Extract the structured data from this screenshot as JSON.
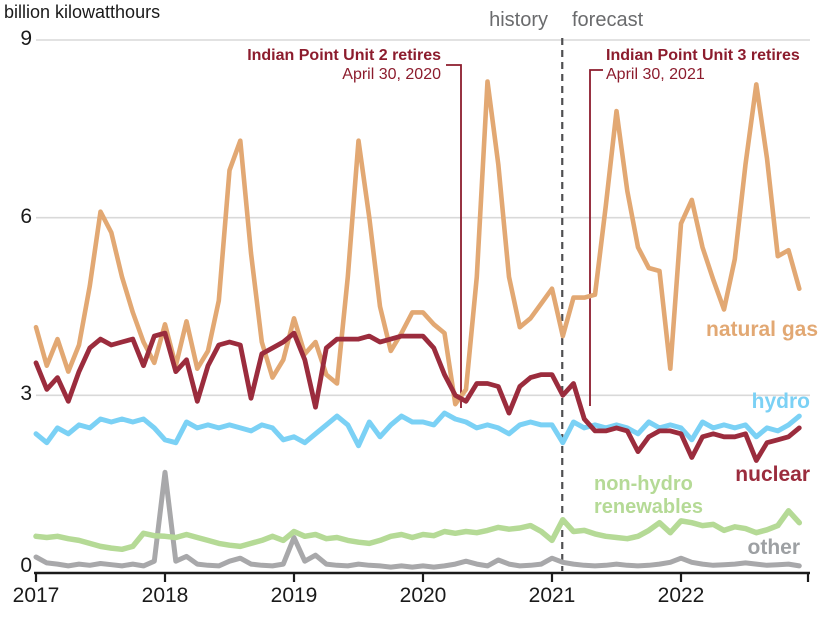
{
  "title": "billion kilowatthours",
  "period_labels": {
    "history": "history",
    "forecast": "forecast"
  },
  "annotations": {
    "unit2": {
      "title": "Indian Point Unit 2 retires",
      "date": "April 30, 2020"
    },
    "unit3": {
      "title": "Indian Point Unit 3 retires",
      "date": "April 30, 2021"
    }
  },
  "axis": {
    "y_tick_labels": [
      "9",
      "6",
      "3",
      "0"
    ],
    "x_tick_labels": [
      "2017",
      "2018",
      "2019",
      "2020",
      "2021",
      "2022"
    ]
  },
  "chart_data": {
    "type": "line",
    "title": "billion kilowatthours",
    "ylabel": "billion kilowatthours",
    "xlabel": "",
    "x_monthly_start": "2017-01",
    "x_monthly_end": "2022-12",
    "ylim": [
      0,
      9
    ],
    "yticks": [
      0,
      3,
      6,
      9
    ],
    "xticks_years": [
      "2017",
      "2018",
      "2019",
      "2020",
      "2021",
      "2022"
    ],
    "grid": "horizontal",
    "legend_position": "inline-labels",
    "history_forecast_boundary": "2021-02",
    "boundary_index": 49,
    "colors": {
      "annotation": "#8c1c2d",
      "boundary_dash": "#4f4f51",
      "gridline": "#d9d9d9",
      "axis": "#1a1a1a",
      "period_text": "#6a6b6d"
    },
    "series": [
      {
        "name": "other",
        "label": "other",
        "color": "#a8a8aa",
        "values": [
          0.27,
          0.17,
          0.15,
          0.12,
          0.15,
          0.13,
          0.16,
          0.14,
          0.12,
          0.15,
          0.12,
          0.2,
          1.7,
          0.2,
          0.28,
          0.15,
          0.13,
          0.12,
          0.2,
          0.25,
          0.15,
          0.13,
          0.12,
          0.15,
          0.6,
          0.2,
          0.3,
          0.15,
          0.13,
          0.12,
          0.15,
          0.13,
          0.12,
          0.1,
          0.12,
          0.1,
          0.12,
          0.1,
          0.12,
          0.15,
          0.2,
          0.15,
          0.12,
          0.22,
          0.15,
          0.12,
          0.13,
          0.15,
          0.25,
          0.18,
          0.15,
          0.13,
          0.12,
          0.13,
          0.15,
          0.13,
          0.12,
          0.13,
          0.15,
          0.18,
          0.25,
          0.18,
          0.15,
          0.13,
          0.14,
          0.15,
          0.17,
          0.15,
          0.13,
          0.14,
          0.15,
          0.12
        ]
      },
      {
        "name": "non-hydro renewables",
        "label": "non-hydro renewables",
        "label_lines": [
          "non-hydro",
          "renewables"
        ],
        "color": "#b5da96",
        "values": [
          0.62,
          0.6,
          0.62,
          0.58,
          0.55,
          0.5,
          0.45,
          0.42,
          0.4,
          0.45,
          0.67,
          0.63,
          0.62,
          0.6,
          0.65,
          0.6,
          0.55,
          0.5,
          0.47,
          0.45,
          0.5,
          0.55,
          0.62,
          0.55,
          0.7,
          0.62,
          0.65,
          0.58,
          0.6,
          0.55,
          0.52,
          0.5,
          0.55,
          0.62,
          0.65,
          0.6,
          0.65,
          0.63,
          0.7,
          0.67,
          0.7,
          0.68,
          0.72,
          0.77,
          0.74,
          0.76,
          0.8,
          0.7,
          0.55,
          0.9,
          0.7,
          0.72,
          0.66,
          0.62,
          0.6,
          0.58,
          0.62,
          0.72,
          0.85,
          0.68,
          0.88,
          0.85,
          0.8,
          0.82,
          0.72,
          0.78,
          0.75,
          0.68,
          0.73,
          0.8,
          1.05,
          0.85
        ]
      },
      {
        "name": "natural gas",
        "label": "natural gas",
        "color": "#e2a873",
        "values": [
          4.15,
          3.5,
          3.95,
          3.4,
          3.85,
          4.85,
          6.1,
          5.75,
          5.0,
          4.4,
          3.9,
          3.55,
          4.2,
          3.5,
          4.25,
          3.45,
          3.75,
          4.6,
          6.8,
          7.3,
          5.4,
          3.9,
          3.3,
          3.6,
          4.3,
          3.7,
          3.9,
          3.35,
          3.2,
          5.0,
          7.3,
          6.0,
          4.5,
          3.75,
          4.05,
          4.4,
          4.4,
          4.2,
          4.05,
          2.85,
          3.1,
          5.0,
          8.3,
          6.9,
          5.0,
          4.15,
          4.3,
          4.55,
          4.8,
          4.0,
          4.65,
          4.65,
          4.7,
          6.2,
          7.8,
          6.45,
          5.5,
          5.15,
          5.1,
          3.45,
          5.9,
          6.3,
          5.5,
          4.95,
          4.45,
          5.3,
          6.9,
          8.25,
          7.0,
          5.35,
          5.45,
          4.8
        ]
      },
      {
        "name": "hydro",
        "label": "hydro",
        "color": "#7bd1f5",
        "values": [
          2.35,
          2.2,
          2.45,
          2.35,
          2.5,
          2.45,
          2.6,
          2.55,
          2.6,
          2.55,
          2.6,
          2.45,
          2.25,
          2.2,
          2.55,
          2.45,
          2.5,
          2.45,
          2.5,
          2.45,
          2.4,
          2.5,
          2.45,
          2.25,
          2.3,
          2.2,
          2.35,
          2.5,
          2.65,
          2.5,
          2.15,
          2.55,
          2.3,
          2.5,
          2.65,
          2.55,
          2.55,
          2.5,
          2.7,
          2.6,
          2.55,
          2.45,
          2.5,
          2.45,
          2.35,
          2.5,
          2.55,
          2.5,
          2.5,
          2.2,
          2.55,
          2.45,
          2.5,
          2.45,
          2.5,
          2.45,
          2.35,
          2.55,
          2.45,
          2.5,
          2.45,
          2.25,
          2.55,
          2.45,
          2.5,
          2.45,
          2.5,
          2.3,
          2.45,
          2.4,
          2.5,
          2.65
        ]
      },
      {
        "name": "nuclear",
        "label": "nuclear",
        "color": "#9b2c3d",
        "values": [
          3.55,
          3.1,
          3.3,
          2.9,
          3.4,
          3.8,
          3.95,
          3.85,
          3.9,
          3.95,
          3.5,
          4.0,
          4.05,
          3.4,
          3.6,
          2.9,
          3.5,
          3.85,
          3.9,
          3.85,
          2.95,
          3.7,
          3.8,
          3.9,
          4.05,
          3.6,
          2.8,
          3.8,
          3.95,
          3.95,
          3.95,
          4.0,
          3.9,
          3.95,
          4.0,
          4.0,
          4.0,
          3.8,
          3.35,
          3.0,
          2.9,
          3.2,
          3.2,
          3.15,
          2.7,
          3.15,
          3.3,
          3.35,
          3.35,
          3.0,
          3.2,
          2.6,
          2.4,
          2.4,
          2.45,
          2.4,
          2.05,
          2.3,
          2.4,
          2.4,
          2.35,
          1.95,
          2.3,
          2.35,
          2.3,
          2.3,
          2.35,
          1.9,
          2.2,
          2.25,
          2.3,
          2.45
        ]
      }
    ]
  }
}
